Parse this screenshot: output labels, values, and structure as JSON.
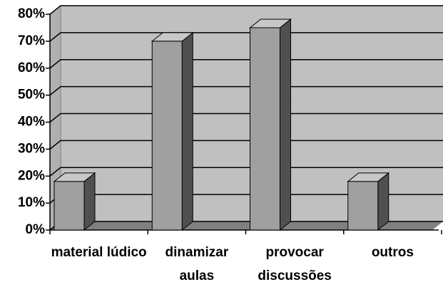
{
  "chart_data": {
    "type": "bar",
    "categories": [
      "material lúdico",
      "dinamizar aulas",
      "provocar discussões",
      "outros"
    ],
    "values": [
      18,
      70,
      75,
      18
    ],
    "color": "#a0a0a0",
    "ylim": [
      0,
      80
    ],
    "yticks": [
      {
        "value": 0,
        "label": "0%"
      },
      {
        "value": 10,
        "label": "10%"
      },
      {
        "value": 20,
        "label": "20%"
      },
      {
        "value": 30,
        "label": "30%"
      },
      {
        "value": 40,
        "label": "40%"
      },
      {
        "value": 50,
        "label": "50%"
      },
      {
        "value": 60,
        "label": "60%"
      },
      {
        "value": 70,
        "label": "70%"
      },
      {
        "value": 80,
        "label": "80%"
      }
    ],
    "grid": true
  }
}
